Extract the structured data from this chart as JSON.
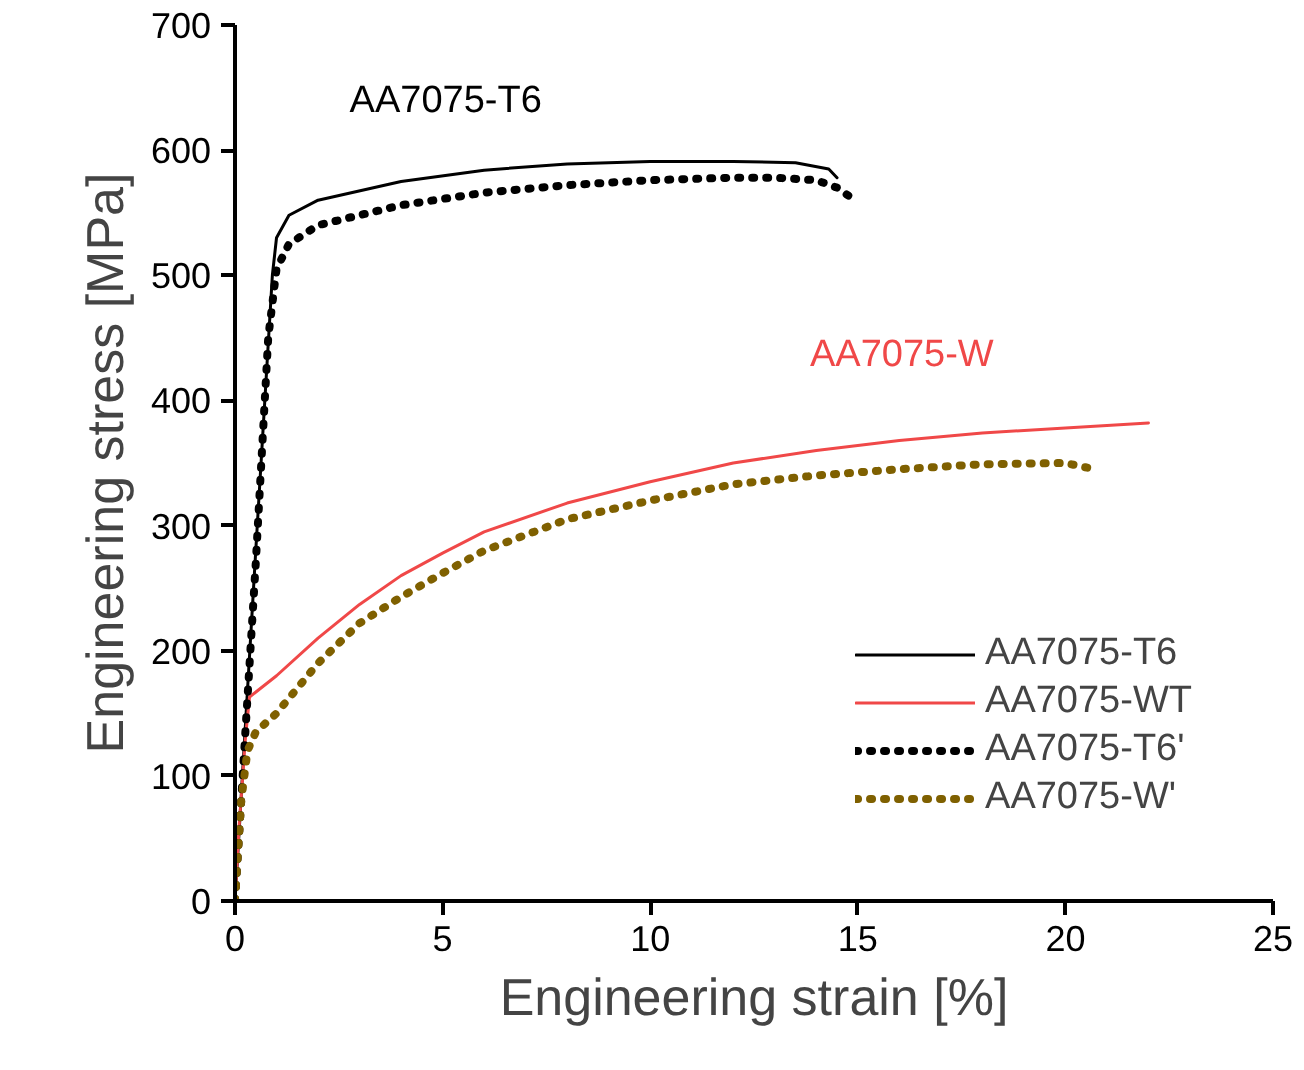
{
  "chart_data": {
    "type": "line",
    "xlabel": "Engineering strain [%]",
    "ylabel": "Engineering stress [MPa]",
    "xlim": [
      0,
      25
    ],
    "ylim": [
      0,
      700
    ],
    "xticks": [
      0,
      5,
      10,
      15,
      20,
      25
    ],
    "yticks": [
      0,
      100,
      200,
      300,
      400,
      500,
      600,
      700
    ],
    "grid": false,
    "legend": "bottom right",
    "marker": "none",
    "annotations": [
      "AA7075-T6",
      "AA7075-W"
    ],
    "series": [
      {
        "name": "AA7075-T6",
        "color": "#000000",
        "line_style": "solid",
        "x": [
          0,
          0.5,
          0.9,
          1.0,
          1.3,
          2,
          4,
          6,
          8,
          10,
          12,
          13.5,
          14.3,
          14.5
        ],
        "values": [
          0,
          280,
          500,
          530,
          548,
          560,
          575,
          584,
          589,
          591,
          591,
          590,
          585,
          578
        ]
      },
      {
        "name": "AA7075-WT",
        "color": "#f04848",
        "line_style": "solid",
        "x": [
          0,
          0.1,
          0.25,
          0.35,
          1,
          2,
          3,
          4,
          5,
          6,
          8,
          10,
          12,
          14,
          16,
          18,
          20,
          22
        ],
        "values": [
          0,
          60,
          130,
          163,
          180,
          210,
          237,
          260,
          278,
          295,
          318,
          335,
          350,
          360,
          368,
          374,
          378,
          382
        ]
      },
      {
        "name": "AA7075-T6'",
        "color": "#000000",
        "line_style": "dotted",
        "x": [
          0,
          0.5,
          0.8,
          1.0,
          1.3,
          2,
          4,
          6,
          8,
          10,
          12,
          13,
          14,
          14.5,
          14.8
        ],
        "values": [
          0,
          270,
          450,
          505,
          525,
          540,
          556,
          566,
          572,
          576,
          578,
          578,
          576,
          570,
          563
        ]
      },
      {
        "name": "AA7075-W'",
        "color": "#7f6000",
        "line_style": "dotted",
        "x": [
          0,
          0.15,
          0.3,
          0.5,
          1,
          2,
          3,
          4,
          5,
          6,
          8,
          10,
          12,
          14,
          16,
          18,
          20,
          20.7
        ],
        "values": [
          0,
          80,
          120,
          135,
          150,
          190,
          222,
          243,
          262,
          280,
          305,
          320,
          333,
          340,
          345,
          349,
          350,
          345
        ]
      }
    ]
  }
}
